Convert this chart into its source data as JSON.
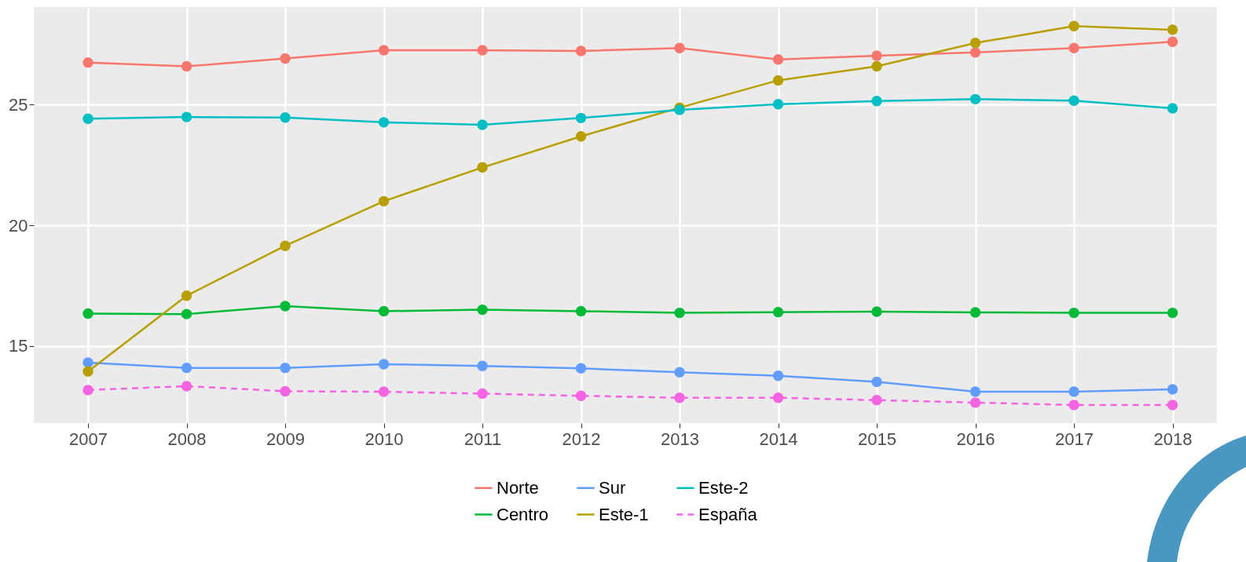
{
  "chart_data": {
    "type": "line",
    "x": [
      2007,
      2008,
      2009,
      2010,
      2011,
      2012,
      2013,
      2014,
      2015,
      2016,
      2017,
      2018
    ],
    "xlim": [
      2006.45,
      2018.45
    ],
    "xticks": [
      2007,
      2008,
      2009,
      2010,
      2011,
      2012,
      2013,
      2014,
      2015,
      2016,
      2017,
      2018
    ],
    "ylim": [
      11.8,
      29.05
    ],
    "yticks": [
      15,
      20,
      25
    ],
    "grid": true,
    "legend": "bottom",
    "marker": "circle",
    "series": [
      {
        "name": "Norte",
        "color": "#f8766d",
        "line_style": "solid",
        "values": [
          26.75,
          26.59,
          26.92,
          27.26,
          27.26,
          27.23,
          27.35,
          26.88,
          27.03,
          27.17,
          27.35,
          27.61
        ]
      },
      {
        "name": "Centro",
        "color": "#00ba38",
        "line_style": "solid",
        "values": [
          16.34,
          16.32,
          16.65,
          16.44,
          16.5,
          16.44,
          16.37,
          16.4,
          16.42,
          16.39,
          16.37,
          16.37
        ]
      },
      {
        "name": "Sur",
        "color": "#619cff",
        "line_style": "solid",
        "values": [
          14.31,
          14.09,
          14.09,
          14.24,
          14.17,
          14.07,
          13.91,
          13.76,
          13.51,
          13.1,
          13.1,
          13.2
        ]
      },
      {
        "name": "Este-1",
        "color": "#b79f00",
        "line_style": "solid",
        "values": [
          13.94,
          17.08,
          19.15,
          21.0,
          22.4,
          23.69,
          24.88,
          26.01,
          26.59,
          27.56,
          28.26,
          28.11
        ]
      },
      {
        "name": "Este-2",
        "color": "#00bfc4",
        "line_style": "solid",
        "values": [
          24.42,
          24.49,
          24.47,
          24.27,
          24.17,
          24.45,
          24.79,
          25.02,
          25.15,
          25.23,
          25.17,
          24.85
        ]
      },
      {
        "name": "España",
        "color": "#f564e3",
        "line_style": "dashed",
        "values": [
          13.17,
          13.33,
          13.12,
          13.1,
          13.02,
          12.93,
          12.85,
          12.85,
          12.75,
          12.65,
          12.55,
          12.55
        ]
      }
    ]
  }
}
